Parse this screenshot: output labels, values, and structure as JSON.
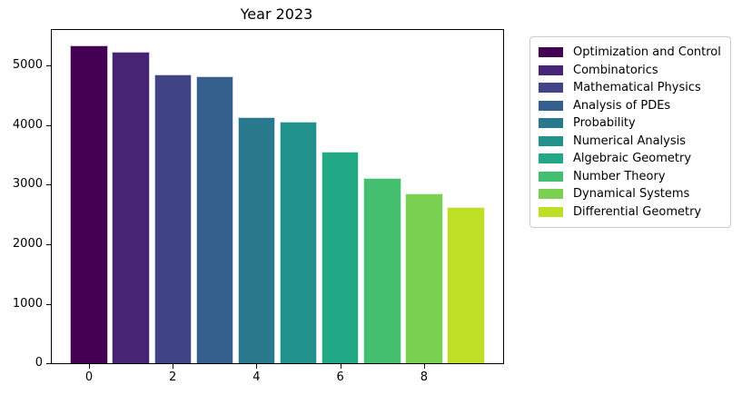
{
  "chart_data": {
    "type": "bar",
    "title": "Year 2023",
    "categories": [
      "Optimization and Control",
      "Combinatorics",
      "Mathematical Physics",
      "Analysis of PDEs",
      "Probability",
      "Numerical Analysis",
      "Algebraic Geometry",
      "Number Theory",
      "Dynamical Systems",
      "Differential Geometry"
    ],
    "values": [
      5340,
      5230,
      4850,
      4820,
      4140,
      4060,
      3550,
      3110,
      2850,
      2630
    ],
    "colors": [
      "#440154",
      "#482475",
      "#414487",
      "#355f8d",
      "#2a788e",
      "#21918c",
      "#22a884",
      "#44bf70",
      "#7ad151",
      "#bddf26"
    ],
    "xlabel": "",
    "ylabel": "",
    "x_ticks": [
      0,
      2,
      4,
      6,
      8
    ],
    "y_ticks": [
      0,
      1000,
      2000,
      3000,
      4000,
      5000
    ],
    "xlim": [
      -0.89,
      9.89
    ],
    "ylim": [
      0,
      5600
    ],
    "bar_width": 0.9,
    "grid": false,
    "legend_position": "outside-right",
    "background_color": "#ffffff",
    "axis_color": "#000000",
    "legend_border_color": "#cccccc"
  }
}
